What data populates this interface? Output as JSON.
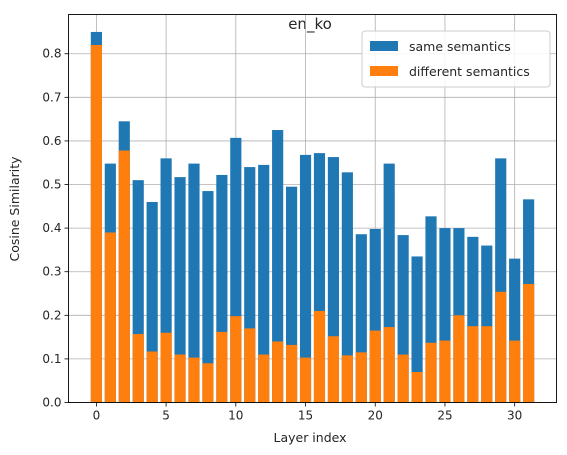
{
  "chart_data": {
    "type": "bar",
    "title": "en_ko",
    "xlabel": "Layer index",
    "ylabel": "Cosine Similarity",
    "x": [
      0,
      1,
      2,
      3,
      4,
      5,
      6,
      7,
      8,
      9,
      10,
      11,
      12,
      13,
      14,
      15,
      16,
      17,
      18,
      19,
      20,
      21,
      22,
      23,
      24,
      25,
      26,
      27,
      28,
      29,
      30,
      31
    ],
    "xlim": [
      -2,
      33
    ],
    "ylim": [
      0,
      0.89
    ],
    "xticks": [
      0,
      5,
      10,
      15,
      20,
      25,
      30
    ],
    "yticks": [
      0.0,
      0.1,
      0.2,
      0.3,
      0.4,
      0.5,
      0.6,
      0.7,
      0.8
    ],
    "xtick_labels": [
      "0",
      "5",
      "10",
      "15",
      "20",
      "25",
      "30"
    ],
    "ytick_labels": [
      "0.0",
      "0.1",
      "0.2",
      "0.3",
      "0.4",
      "0.5",
      "0.6",
      "0.7",
      "0.8"
    ],
    "grid": true,
    "legend_position": "top-right",
    "overlay": true,
    "series": [
      {
        "name": "same semantics",
        "color": "#1f77b4",
        "values": [
          0.85,
          0.548,
          0.645,
          0.51,
          0.46,
          0.56,
          0.517,
          0.548,
          0.485,
          0.522,
          0.607,
          0.54,
          0.545,
          0.625,
          0.495,
          0.568,
          0.572,
          0.563,
          0.528,
          0.386,
          0.398,
          0.548,
          0.384,
          0.335,
          0.427,
          0.4,
          0.4,
          0.38,
          0.36,
          0.56,
          0.33,
          0.466
        ]
      },
      {
        "name": "different semantics",
        "color": "#ff7f0e",
        "values": [
          0.82,
          0.39,
          0.578,
          0.157,
          0.117,
          0.16,
          0.11,
          0.103,
          0.09,
          0.162,
          0.198,
          0.17,
          0.11,
          0.14,
          0.132,
          0.103,
          0.21,
          0.152,
          0.108,
          0.115,
          0.165,
          0.173,
          0.11,
          0.07,
          0.137,
          0.142,
          0.2,
          0.175,
          0.175,
          0.254,
          0.142,
          0.272
        ]
      }
    ]
  }
}
